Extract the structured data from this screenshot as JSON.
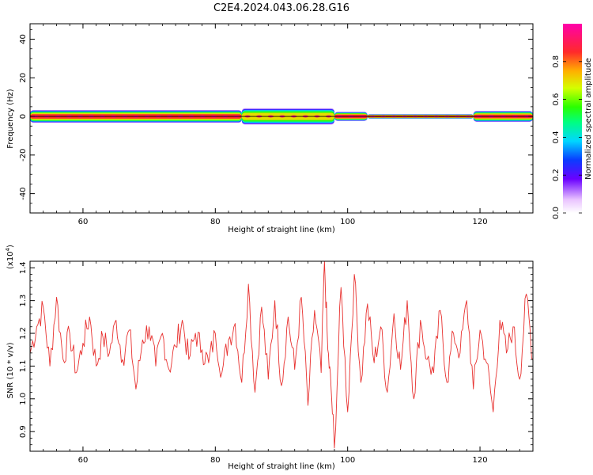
{
  "figure": {
    "title": "C2E4.2024.043.06.28.G16"
  },
  "chart_data": [
    {
      "id": "spectrogram",
      "type": "heatmap",
      "xlabel": "Height of straight line (km)",
      "ylabel": "Frequency (Hz)",
      "xlim": [
        52,
        128
      ],
      "ylim": [
        -50,
        48
      ],
      "xticks": [
        60,
        80,
        100,
        120
      ],
      "yticks": [
        -40,
        -20,
        0,
        20,
        40
      ],
      "colorbar": {
        "label": "Normalized spectral amplitude",
        "ticks": [
          0.0,
          0.2,
          0.4,
          0.6,
          0.8
        ],
        "range": [
          0,
          1
        ]
      },
      "bands": [
        {
          "x0": 52,
          "x1": 84,
          "halfwidth_hz": 3.5,
          "peak": 0.9
        },
        {
          "x0": 84,
          "x1": 98,
          "halfwidth_hz": 4.5,
          "peak": 0.8
        },
        {
          "x0": 98,
          "x1": 103,
          "halfwidth_hz": 2.5,
          "peak": 0.95
        },
        {
          "x0": 103,
          "x1": 119,
          "halfwidth_hz": 1.2,
          "peak": 1.0
        },
        {
          "x0": 119,
          "x1": 128,
          "halfwidth_hz": 3.0,
          "peak": 0.9
        }
      ]
    },
    {
      "id": "snr",
      "type": "line",
      "xlabel": "Height of straight line (km)",
      "ylabel": "SNR (10 * v/v)",
      "yscale_label": "(x10",
      "yscale_exp": "4",
      "xlim": [
        52,
        128
      ],
      "ylim": [
        0.84,
        1.42
      ],
      "xticks": [
        60,
        80,
        100,
        120
      ],
      "yticks": [
        0.9,
        1.0,
        1.1,
        1.2,
        1.3,
        1.4
      ],
      "ytick_labels": [
        "0.9",
        "1.0",
        "1.1",
        "1.2",
        "1.3",
        "1.4"
      ],
      "series": [
        {
          "color": "#e8312f",
          "x": [
            52,
            53,
            54,
            55,
            56,
            57,
            58,
            59,
            60,
            61,
            62,
            63,
            64,
            65,
            66,
            67,
            68,
            69,
            70,
            71,
            72,
            73,
            74,
            75,
            76,
            77,
            78,
            79,
            80,
            81,
            82,
            83,
            84,
            85,
            86,
            87,
            88,
            89,
            90,
            91,
            92,
            93,
            94,
            95,
            96,
            96.5,
            97,
            97.5,
            98,
            99,
            100,
            101,
            102,
            103,
            104,
            105,
            106,
            107,
            108,
            109,
            110,
            111,
            112,
            113,
            114,
            115,
            116,
            117,
            118,
            119,
            120,
            121,
            122,
            123,
            124,
            125,
            126,
            127,
            128
          ],
          "y": [
            1.14,
            1.22,
            1.28,
            1.1,
            1.31,
            1.12,
            1.2,
            1.08,
            1.17,
            1.25,
            1.1,
            1.19,
            1.14,
            1.24,
            1.12,
            1.21,
            1.03,
            1.18,
            1.22,
            1.1,
            1.2,
            1.09,
            1.16,
            1.24,
            1.12,
            1.2,
            1.15,
            1.11,
            1.2,
            1.08,
            1.18,
            1.23,
            1.05,
            1.35,
            1.02,
            1.28,
            1.06,
            1.3,
            1.04,
            1.25,
            1.09,
            1.31,
            0.98,
            1.27,
            1.08,
            1.42,
            1.15,
            1.03,
            0.85,
            1.34,
            0.96,
            1.38,
            1.05,
            1.29,
            1.11,
            1.22,
            1.02,
            1.26,
            1.09,
            1.3,
            1.0,
            1.24,
            1.12,
            1.08,
            1.27,
            1.05,
            1.2,
            1.14,
            1.3,
            1.03,
            1.21,
            1.11,
            0.96,
            1.24,
            1.14,
            1.22,
            1.06,
            1.32,
            1.12
          ]
        }
      ]
    }
  ]
}
